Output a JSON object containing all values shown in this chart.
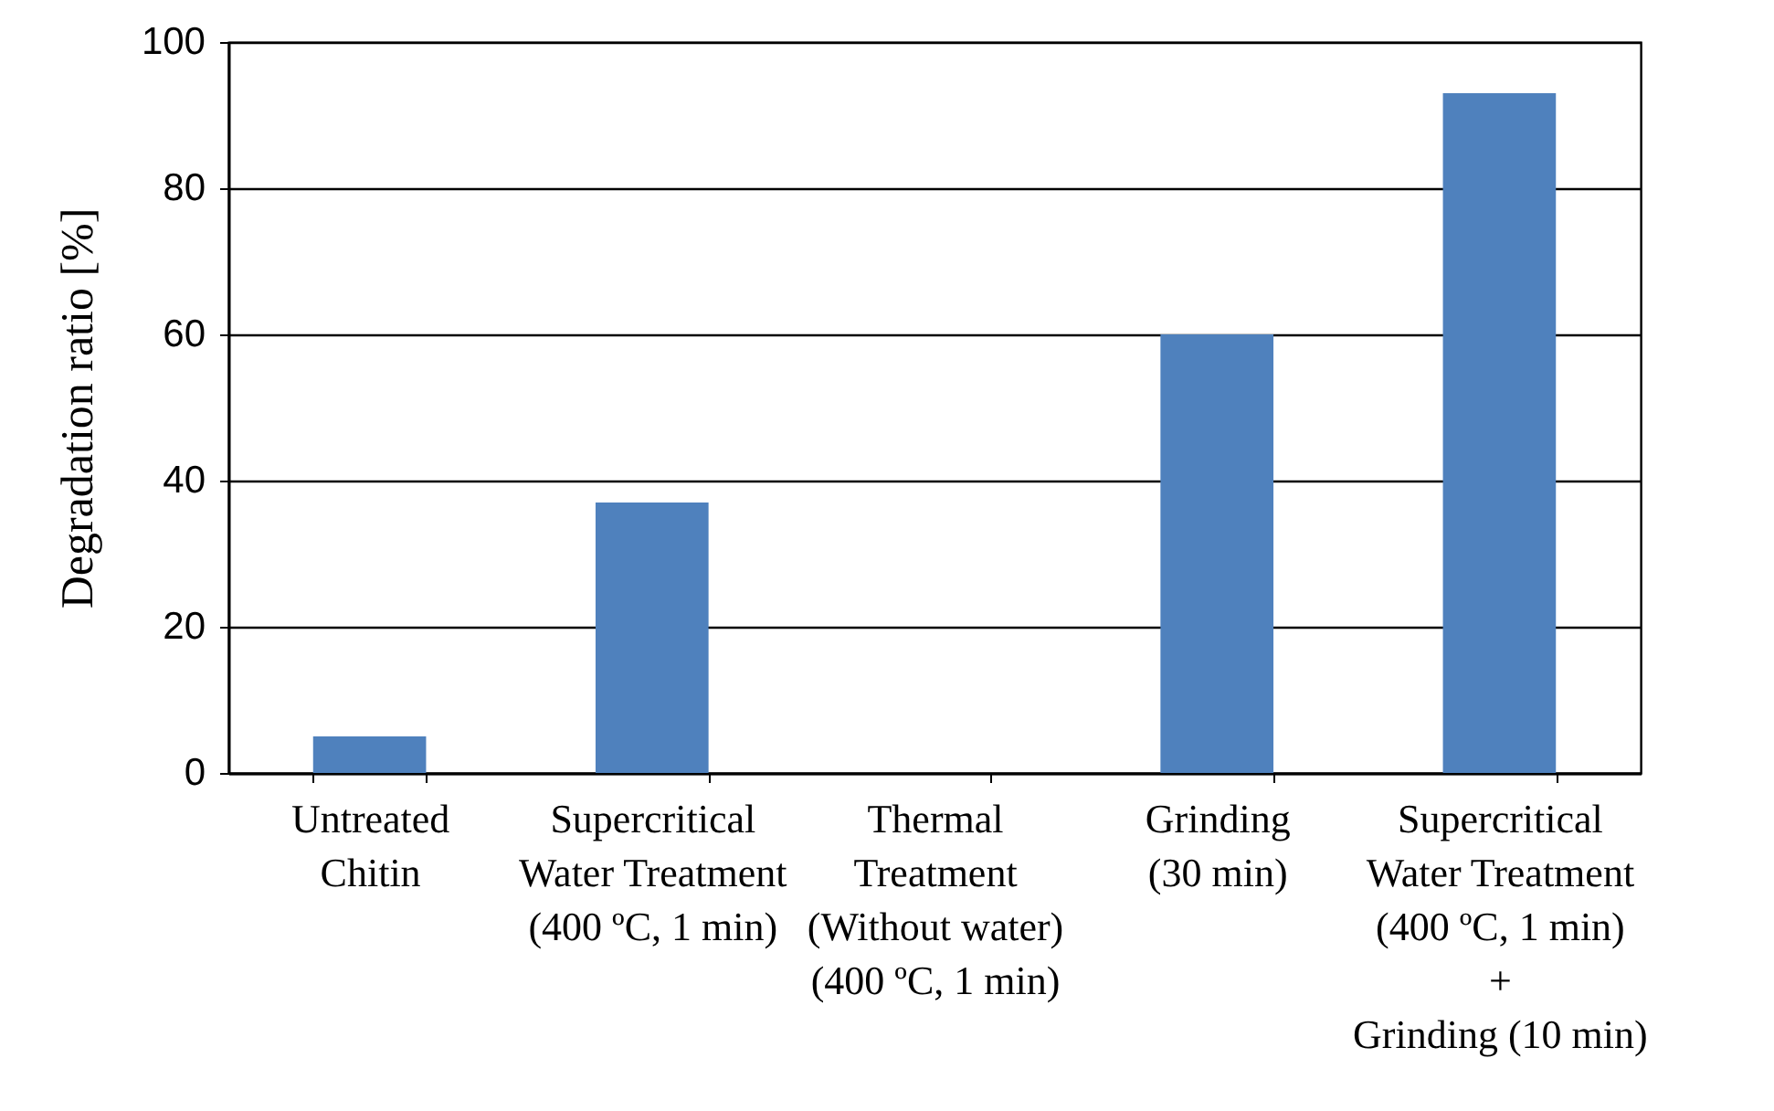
{
  "chart_data": {
    "type": "bar",
    "ylabel": "Degradation ratio [%]",
    "categories": [
      "Untreated\nChitin",
      "Supercritical\nWater Treatment\n(400 ºC, 1 min)",
      "Thermal\nTreatment\n(Without water)\n(400 ºC, 1 min)",
      "Grinding\n(30 min)",
      "Supercritical\nWater Treatment\n(400 ºC, 1 min)\n+\nGrinding (10 min)"
    ],
    "values": [
      5,
      37,
      0,
      60,
      93
    ],
    "color": "#4f81bd",
    "ylim": [
      0,
      100
    ],
    "yticks": [
      0,
      20,
      40,
      60,
      80,
      100
    ],
    "grid": "y",
    "legend": false
  }
}
